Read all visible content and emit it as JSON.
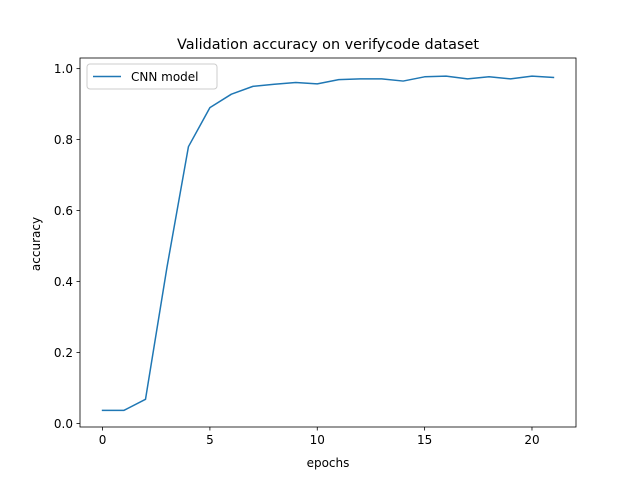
{
  "chart_data": {
    "type": "line",
    "title": "Validation accuracy on verifycode dataset",
    "xlabel": "epochs",
    "ylabel": "accuracy",
    "xlim": [
      -1.05,
      22.05
    ],
    "ylim": [
      -0.01,
      1.03
    ],
    "x_ticks": [
      0,
      5,
      10,
      15,
      20
    ],
    "x_tick_labels": [
      "0",
      "5",
      "10",
      "15",
      "20"
    ],
    "y_ticks": [
      0.0,
      0.2,
      0.4,
      0.6,
      0.8,
      1.0
    ],
    "y_tick_labels": [
      "0.0",
      "0.2",
      "0.4",
      "0.6",
      "0.8",
      "1.0"
    ],
    "grid": false,
    "legend_position": "upper-left",
    "series": [
      {
        "name": "CNN model",
        "color": "#1f77b4",
        "x": [
          0,
          1,
          2,
          3,
          4,
          5,
          6,
          7,
          8,
          9,
          10,
          11,
          12,
          13,
          14,
          15,
          16,
          17,
          18,
          19,
          20,
          21
        ],
        "values": [
          0.037,
          0.037,
          0.068,
          0.44,
          0.78,
          0.89,
          0.928,
          0.95,
          0.956,
          0.961,
          0.957,
          0.969,
          0.971,
          0.971,
          0.965,
          0.977,
          0.979,
          0.971,
          0.977,
          0.971,
          0.979,
          0.975
        ]
      }
    ]
  }
}
